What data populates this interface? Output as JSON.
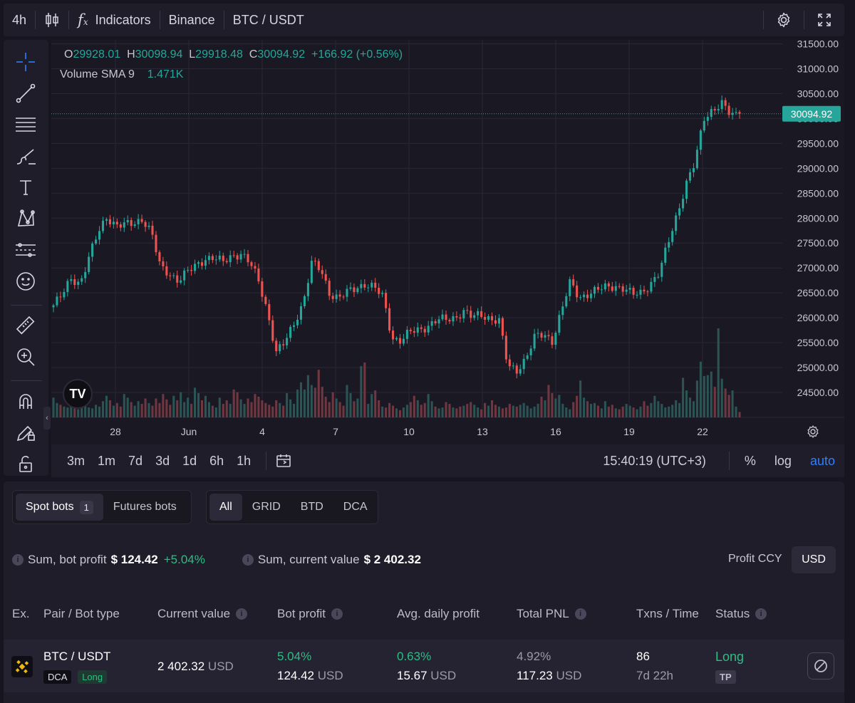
{
  "toolbar": {
    "interval": "4h",
    "indicators_label": "Indicators",
    "exchange": "Binance",
    "pair": "BTC / USDT"
  },
  "legend": {
    "o_key": "O",
    "o_val": "29928.01",
    "h_key": "H",
    "h_val": "30098.94",
    "l_key": "L",
    "l_val": "29918.48",
    "c_key": "C",
    "c_val": "30094.92",
    "change": "+166.92 (+0.56%)",
    "volume_label": "Volume SMA 9",
    "volume_value": "1.471K"
  },
  "chart_data": {
    "type": "candlestick",
    "y_ticks": [
      "31500.00",
      "31000.00",
      "30500.00",
      "30000.00",
      "29500.00",
      "29000.00",
      "28500.00",
      "28000.00",
      "27500.00",
      "27000.00",
      "26500.00",
      "26000.00",
      "25500.00",
      "25000.00",
      "24500.00"
    ],
    "ylim": [
      24200,
      31550
    ],
    "x_ticks": [
      "28",
      "Jun",
      "4",
      "7",
      "10",
      "13",
      "16",
      "19",
      "22"
    ],
    "last_price": "30094.92",
    "close_path": [
      26250,
      26450,
      26800,
      26700,
      27200,
      27700,
      28050,
      27850,
      27850,
      27900,
      28000,
      27700,
      27000,
      26900,
      26750,
      26900,
      27050,
      27200,
      27200,
      27100,
      27250,
      27300,
      27100,
      26750,
      26150,
      25300,
      25500,
      25900,
      26300,
      27100,
      26950,
      26500,
      26400,
      26500,
      26600,
      26700,
      26600,
      26400,
      25600,
      25550,
      25700,
      25750,
      25850,
      25950,
      25950,
      26000,
      26150,
      26000,
      26050,
      26000,
      25950,
      25000,
      24950,
      25200,
      25600,
      25650,
      25550,
      26150,
      26700,
      26400,
      26500,
      26550,
      26600,
      26650,
      26600,
      26450,
      26500,
      26700,
      26900,
      27500,
      28100,
      28700,
      29100,
      30000,
      30200,
      30300,
      30050,
      30094.92
    ],
    "volumes": [
      2.2,
      1.6,
      1.4,
      1.2,
      1.1,
      1.3,
      1.0,
      0.9,
      1.6,
      1.3,
      1.1,
      1.0,
      1.4,
      1.2,
      1.8,
      2.4,
      1.9,
      1.3,
      1.6,
      1.2,
      2.6,
      2.2,
      1.7,
      1.3,
      1.8,
      1.5,
      2.1,
      1.6,
      1.3,
      2.1,
      1.6,
      2.6,
      2.0,
      1.4,
      2.4,
      1.9,
      2.8,
      1.7,
      2.2,
      1.5,
      3.3,
      2.7,
      1.9,
      2.4,
      1.7,
      1.3,
      1.1,
      2.2,
      1.5,
      1.9,
      1.5,
      3.1,
      2.8,
      2.0,
      1.5,
      2.1,
      1.7,
      2.6,
      2.3,
      1.9,
      1.6,
      1.4,
      1.2,
      1.9,
      1.6,
      1.3,
      2.7,
      2.0,
      1.5,
      3.1,
      3.9,
      3.1,
      4.7,
      3.6,
      3.3,
      5.3,
      3.4,
      2.3,
      1.7,
      2.8,
      2.1,
      1.7,
      1.3,
      3.6,
      2.7,
      1.8,
      2.1,
      5.7,
      6.1,
      1.5,
      2.6,
      3.0,
      1.9,
      1.2,
      1.1,
      1.6,
      1.3,
      1.0,
      0.8,
      1.1,
      1.4,
      1.7,
      2.4,
      1.9,
      1.4,
      1.6,
      2.6,
      1.8,
      1.2,
      1.0,
      1.1,
      1.7,
      1.5,
      1.1,
      1.0,
      1.2,
      1.3,
      1.5,
      1.7,
      1.4,
      1.1,
      0.9,
      1.6,
      1.3,
      1.9,
      1.4,
      1.2,
      1.0,
      1.1,
      1.5,
      1.3,
      1.2,
      1.4,
      1.6,
      1.3,
      1.0,
      1.2,
      1.5,
      2.3,
      1.9,
      3.6,
      2.7,
      2.1,
      2.5,
      1.5,
      1.1,
      0.9,
      1.7,
      2.4,
      4.1,
      2.2,
      1.8,
      1.5,
      1.6,
      1.3,
      1.0,
      1.8,
      1.2,
      1.4,
      1.0,
      0.9,
      1.2,
      1.5,
      1.3,
      1.1,
      0.9,
      1.2,
      1.8,
      1.3,
      1.6,
      2.4,
      1.8,
      1.5,
      1.1,
      1.2,
      1.4,
      1.9,
      1.6,
      4.4,
      3.0,
      2.2,
      1.8,
      4.1,
      6.2,
      4.6,
      4.7,
      5.1,
      3.4,
      9.9,
      4.3,
      3.2,
      2.5,
      3.0,
      1.2,
      0.6
    ]
  },
  "timeframes": [
    "3m",
    "1m",
    "7d",
    "3d",
    "1d",
    "6h",
    "1h"
  ],
  "status_time": "15:40:19 (UTC+3)",
  "scale": {
    "percent": "%",
    "log": "log",
    "auto": "auto"
  },
  "panel": {
    "tab_spot": "Spot bots",
    "spot_count": "1",
    "tab_futures": "Futures bots",
    "filters": [
      "All",
      "GRID",
      "BTD",
      "DCA"
    ],
    "sum_profit_label": "Sum, bot profit",
    "sum_profit_value": "$ 124.42",
    "sum_profit_pct": "+5.04%",
    "sum_value_label": "Sum, current value",
    "sum_value_value": "$ 2 402.32",
    "profit_ccy_label": "Profit CCY",
    "profit_ccy_value": "USD",
    "columns": [
      "Ex.",
      "Pair / Bot type",
      "Current value",
      "Bot profit",
      "Avg. daily profit",
      "Total PNL",
      "Txns / Time",
      "Status"
    ],
    "row": {
      "pair": "BTC / USDT",
      "type_tag": "DCA",
      "direction_tag": "Long",
      "current_value": "2 402.32",
      "currency": "USD",
      "bot_profit_pct": "5.04%",
      "bot_profit_value": "124.42",
      "avg_daily_pct": "0.63%",
      "avg_daily_value": "15.67",
      "total_pnl_pct": "4.92%",
      "total_pnl_value": "117.23",
      "txns": "86",
      "time": "7d 22h",
      "status": "Long",
      "status_tag": "TP"
    }
  },
  "colors": {
    "up": "#26a69a",
    "down": "#ef5350",
    "accent": "#2f7fff",
    "profit": "#2ebd85"
  }
}
